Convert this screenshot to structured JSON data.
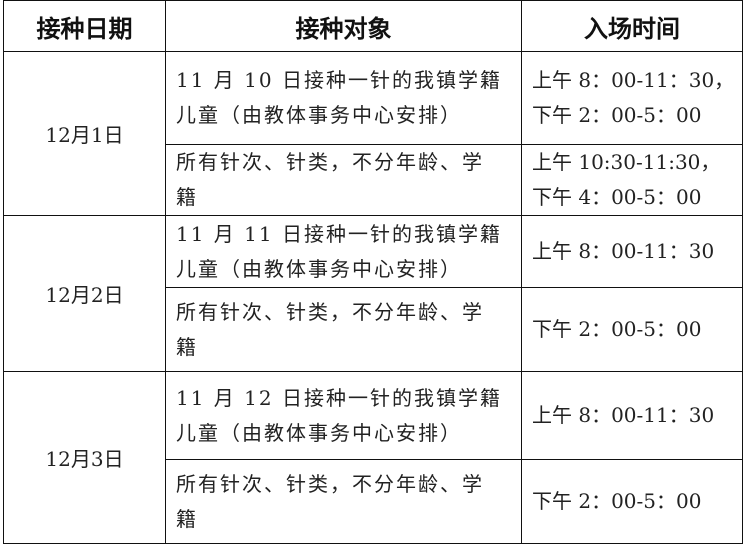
{
  "headers": [
    "接种日期",
    "接种对象",
    "入场时间"
  ],
  "rows": [
    {
      "date": "12月1日",
      "items": [
        {
          "target": [
            "11 月 10 日接种一针的我镇学籍",
            "儿童（由教体事务中心安排）"
          ],
          "time": [
            "上午 8：00-11：30，",
            "下午 2：00-5：00"
          ]
        },
        {
          "target": [
            "所有针次、针类，不分年龄、学",
            "籍"
          ],
          "time": [
            "上午 10:30-11:30，",
            "下午 4：00-5：00"
          ]
        }
      ]
    },
    {
      "date": "12月2日",
      "items": [
        {
          "target": [
            "11 月 11 日接种一针的我镇学籍",
            "儿童（由教体事务中心安排）"
          ],
          "time": [
            "上午 8：00-11：30"
          ]
        },
        {
          "target": [
            "所有针次、针类，不分年龄、学",
            "籍"
          ],
          "time": [
            "下午 2：00-5：00"
          ]
        }
      ]
    },
    {
      "date": "12月3日",
      "items": [
        {
          "target": [
            "11 月 12 日接种一针的我镇学籍",
            "儿童（由教体事务中心安排）"
          ],
          "time": [
            "上午 8：00-11：30"
          ]
        },
        {
          "target": [
            "所有针次、针类，不分年龄、学",
            "籍"
          ],
          "time": [
            "下午 2：00-5：00"
          ]
        }
      ]
    }
  ]
}
